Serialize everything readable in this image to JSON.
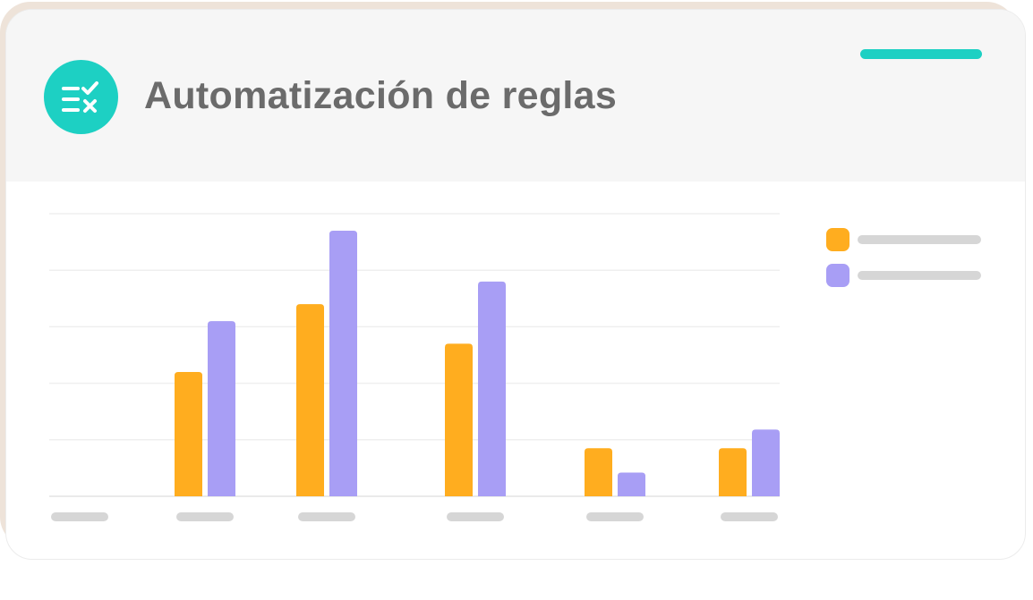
{
  "card": {
    "title": "Automatización de reglas",
    "icon": "rules-checklist-icon",
    "colors": {
      "icon_background": "#1dd0c3",
      "accent_line": "#1dd0c3",
      "header_background": "#f6f6f6"
    }
  },
  "chart_data": {
    "type": "bar",
    "categories": [
      "",
      "",
      "",
      "",
      "",
      ""
    ],
    "series": [
      {
        "color": "#ffad1f",
        "values": [
          0,
          2.2,
          3.4,
          2.7,
          0.85,
          0.85
        ]
      },
      {
        "color": "#a89ef5",
        "values": [
          0,
          3.1,
          4.7,
          3.8,
          0.42,
          1.18
        ]
      }
    ],
    "ylim": [
      0,
      5
    ],
    "grid": true,
    "legend_position": "right"
  }
}
